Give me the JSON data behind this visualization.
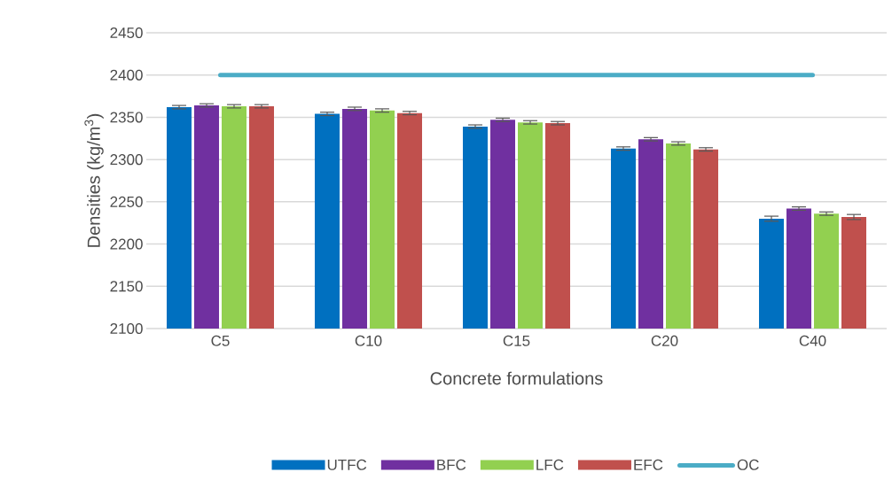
{
  "chart_data": {
    "type": "bar",
    "xlabel": "Concrete formulations",
    "ylabel": "Densities (kg/m$^{3}$)",
    "categories": [
      "C5",
      "C10",
      "C15",
      "C20",
      "C40"
    ],
    "series": [
      {
        "name": "UTFC",
        "color": "#0070c0",
        "values": [
          2362,
          2354,
          2339,
          2313,
          2230
        ],
        "errors": [
          2,
          2,
          2,
          2,
          3
        ]
      },
      {
        "name": "BFC",
        "color": "#7030a0",
        "values": [
          2364,
          2360,
          2347,
          2324,
          2242
        ],
        "errors": [
          2,
          2,
          2,
          2,
          2
        ]
      },
      {
        "name": "LFC",
        "color": "#92d050",
        "values": [
          2363,
          2358,
          2344,
          2319,
          2236
        ],
        "errors": [
          2,
          2,
          2,
          2,
          2
        ]
      },
      {
        "name": "EFC",
        "color": "#c0504d",
        "values": [
          2363,
          2355,
          2343,
          2312,
          2232
        ],
        "errors": [
          2,
          2,
          2,
          2,
          3
        ]
      },
      {
        "name": "OC",
        "type": "line",
        "color": "#4bacc6",
        "values": [
          2400,
          2400,
          2400,
          2400,
          2400
        ]
      }
    ],
    "ylim": [
      2100,
      2450
    ],
    "yticks": [
      2100,
      2150,
      2200,
      2250,
      2300,
      2350,
      2400,
      2450
    ],
    "grid": "y",
    "legend": "bottom"
  }
}
